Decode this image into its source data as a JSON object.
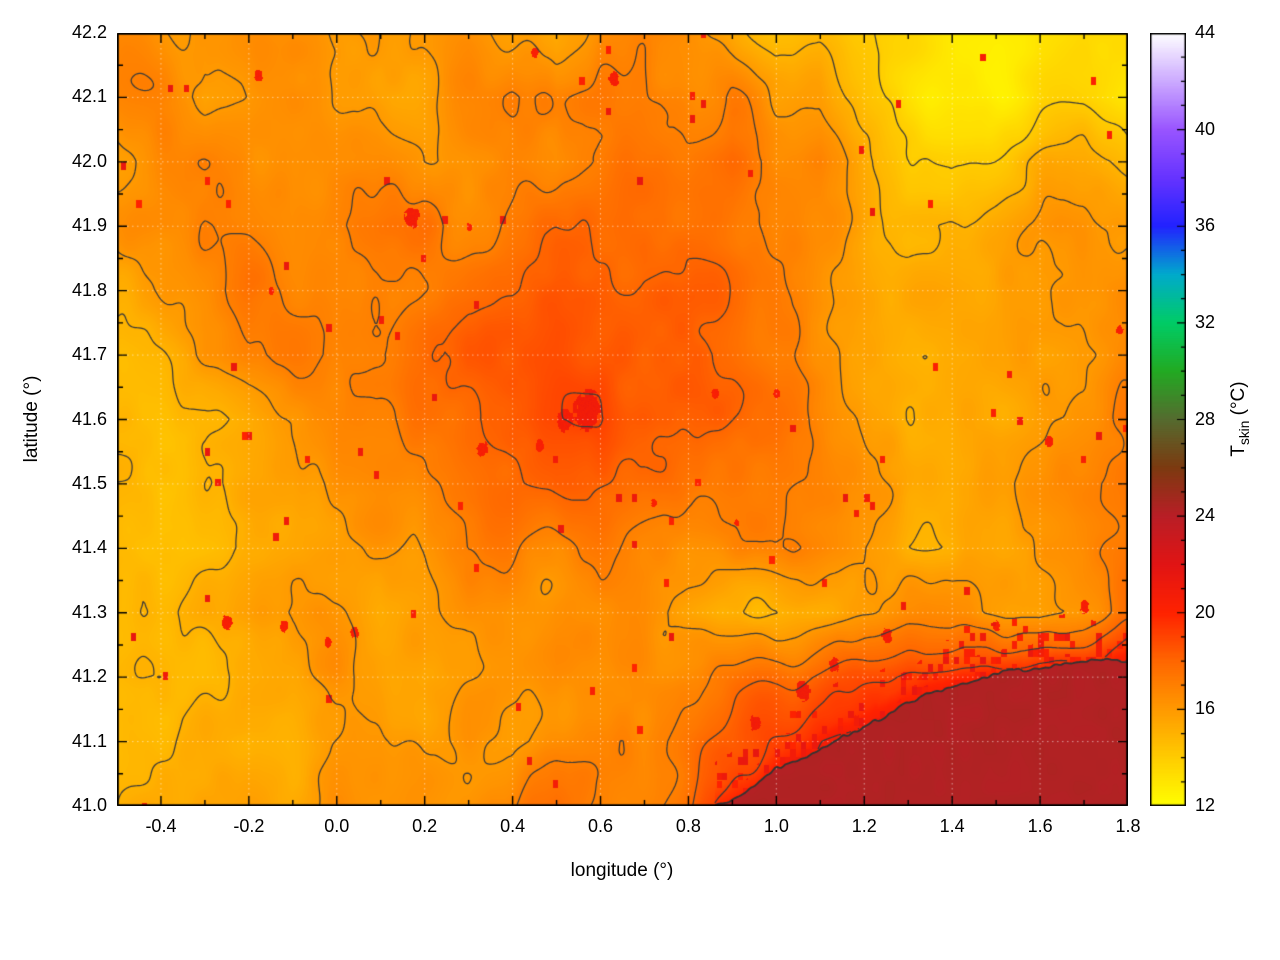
{
  "axes": {
    "x": {
      "label": "longitude (°)",
      "min": -0.5,
      "max": 1.8,
      "tick_labels": [
        "-0.4",
        "-0.2",
        "0.0",
        "0.2",
        "0.4",
        "0.6",
        "0.8",
        "1.0",
        "1.2",
        "1.4",
        "1.6",
        "1.8"
      ],
      "minor_step": 0.1
    },
    "y": {
      "label": "latitude (°)",
      "min": 41.0,
      "max": 42.2,
      "tick_labels": [
        "41.0",
        "41.1",
        "41.2",
        "41.3",
        "41.4",
        "41.5",
        "41.6",
        "41.7",
        "41.8",
        "41.9",
        "42.0",
        "42.1",
        "42.2"
      ],
      "minor_step": 0.05
    },
    "cb": {
      "label_main": "T",
      "label_sub": "skin",
      "label_rest": " (°C)",
      "min": 12,
      "max": 44,
      "tick_labels": [
        "12",
        "16",
        "20",
        "24",
        "28",
        "32",
        "36",
        "40",
        "44"
      ],
      "minor_step": 1
    }
  },
  "chart_data": {
    "type": "heatmap",
    "title": "",
    "variable": "T_skin",
    "units": "°C",
    "x_range": [
      -0.5,
      1.8
    ],
    "y_range": [
      41.0,
      42.2
    ],
    "cb_range": [
      12,
      44
    ],
    "grid": {
      "lon_start": -0.5,
      "lon_step": 0.1,
      "lat_start": 42.2,
      "lat_step": -0.1,
      "ncols": 24,
      "nrows": 13,
      "order": "rows from north (42.2) to south (41.0)",
      "values": [
        [
          16.2,
          16.0,
          15.5,
          15.8,
          16.2,
          16.0,
          15.5,
          15.8,
          16.0,
          15.5,
          15.0,
          16.5,
          16.8,
          16.2,
          15.0,
          14.0,
          14.5,
          13.8,
          13.4,
          13.2,
          13.2,
          13.3,
          13.4,
          13.6
        ],
        [
          16.0,
          16.3,
          15.2,
          15.6,
          16.4,
          16.2,
          15.4,
          16.0,
          16.4,
          16.8,
          16.2,
          17.2,
          17.0,
          16.6,
          16.8,
          15.2,
          15.6,
          14.2,
          13.5,
          13.2,
          13.1,
          13.2,
          13.3,
          13.0
        ],
        [
          15.5,
          16.2,
          16.5,
          16.3,
          16.0,
          16.4,
          16.6,
          16.2,
          16.5,
          16.8,
          16.4,
          17.0,
          17.4,
          17.2,
          17.6,
          16.4,
          16.6,
          15.4,
          14.6,
          14.2,
          14.6,
          15.2,
          15.6,
          15.0
        ],
        [
          15.8,
          16.4,
          16.8,
          16.6,
          16.2,
          16.8,
          17.4,
          17.8,
          17.2,
          17.6,
          17.8,
          17.4,
          17.8,
          17.6,
          17.2,
          16.8,
          16.2,
          15.6,
          15.2,
          15.6,
          15.8,
          16.2,
          16.4,
          16.0
        ],
        [
          15.6,
          16.2,
          16.6,
          17.0,
          16.6,
          16.4,
          17.0,
          17.6,
          18.0,
          17.8,
          18.2,
          18.0,
          18.4,
          18.2,
          17.6,
          17.0,
          16.4,
          16.0,
          15.6,
          15.8,
          15.4,
          16.0,
          16.4,
          16.6
        ],
        [
          15.2,
          15.6,
          16.2,
          16.6,
          16.8,
          16.6,
          17.2,
          17.8,
          18.4,
          18.2,
          18.6,
          18.8,
          18.4,
          18.6,
          18.0,
          17.2,
          16.6,
          16.0,
          15.4,
          15.0,
          15.2,
          15.6,
          16.0,
          16.4
        ],
        [
          15.4,
          15.0,
          14.8,
          15.2,
          15.6,
          16.4,
          17.0,
          17.6,
          18.2,
          18.6,
          18.8,
          19.0,
          18.6,
          18.2,
          17.8,
          17.4,
          16.8,
          16.2,
          15.2,
          14.8,
          15.0,
          15.6,
          16.2,
          17.0
        ],
        [
          14.6,
          14.4,
          14.8,
          15.4,
          15.2,
          15.8,
          16.6,
          17.2,
          17.8,
          18.2,
          18.4,
          18.2,
          17.8,
          17.4,
          17.6,
          17.2,
          16.6,
          16.0,
          15.4,
          15.0,
          15.4,
          16.0,
          16.6,
          17.2
        ],
        [
          14.4,
          14.2,
          14.6,
          15.2,
          15.6,
          15.4,
          16.0,
          16.8,
          17.6,
          17.2,
          16.8,
          17.2,
          16.8,
          16.4,
          16.8,
          17.0,
          16.4,
          15.8,
          15.0,
          14.8,
          15.2,
          15.8,
          16.4,
          17.0
        ],
        [
          14.8,
          15.2,
          15.6,
          16.0,
          16.4,
          16.2,
          15.8,
          16.2,
          16.6,
          16.2,
          16.6,
          16.4,
          16.0,
          15.4,
          14.8,
          14.6,
          15.2,
          16.2,
          16.8,
          16.4,
          16.0,
          15.6,
          16.2,
          17.4
        ],
        [
          15.2,
          15.6,
          15.2,
          15.6,
          16.0,
          16.4,
          16.0,
          15.6,
          16.0,
          16.4,
          16.8,
          16.2,
          15.8,
          16.2,
          16.8,
          17.4,
          18.2,
          19.0,
          19.6,
          20.0,
          20.2,
          20.4,
          20.4,
          20.6
        ],
        [
          14.8,
          15.2,
          15.6,
          15.2,
          15.6,
          16.0,
          16.4,
          16.0,
          16.4,
          16.0,
          16.6,
          17.0,
          16.6,
          17.2,
          18.0,
          19.0,
          20.0,
          20.4,
          20.6,
          20.6,
          20.6,
          20.6,
          20.6,
          20.6
        ],
        [
          14.6,
          15.0,
          15.4,
          15.8,
          15.4,
          15.8,
          16.2,
          16.6,
          16.2,
          16.6,
          17.0,
          16.6,
          17.2,
          18.0,
          19.5,
          20.5,
          20.6,
          20.6,
          20.6,
          20.6,
          20.6,
          20.6,
          20.6,
          20.6
        ]
      ]
    },
    "sea": {
      "temp": 24.25,
      "coastline": [
        [
          0.86,
          41.0
        ],
        [
          0.92,
          41.02
        ],
        [
          1.0,
          41.055
        ],
        [
          1.1,
          41.09
        ],
        [
          1.2,
          41.125
        ],
        [
          1.3,
          41.16
        ],
        [
          1.4,
          41.185
        ],
        [
          1.55,
          41.21
        ],
        [
          1.7,
          41.225
        ],
        [
          1.8,
          41.23
        ]
      ]
    },
    "hot_spots": [
      [
        0.57,
        41.615,
        0.03,
        20.8
      ],
      [
        0.52,
        41.6,
        0.018,
        20.6
      ],
      [
        0.17,
        41.915,
        0.016,
        20.6
      ],
      [
        0.33,
        41.555,
        0.012,
        20.4
      ],
      [
        0.46,
        41.56,
        0.01,
        20.3
      ],
      [
        0.63,
        42.13,
        0.012,
        20.5
      ],
      [
        0.45,
        42.17,
        0.008,
        20.3
      ],
      [
        -0.18,
        42.135,
        0.01,
        20.4
      ],
      [
        0.86,
        41.64,
        0.008,
        20.3
      ],
      [
        1.0,
        41.64,
        0.008,
        20.3
      ],
      [
        0.72,
        41.47,
        0.007,
        20.2
      ],
      [
        -0.25,
        41.285,
        0.012,
        20.4
      ],
      [
        -0.12,
        41.28,
        0.009,
        20.3
      ],
      [
        0.04,
        41.27,
        0.009,
        20.3
      ],
      [
        -0.02,
        41.255,
        0.008,
        20.2
      ],
      [
        1.25,
        41.265,
        0.012,
        20.5
      ],
      [
        1.62,
        41.565,
        0.01,
        20.4
      ],
      [
        1.7,
        41.31,
        0.01,
        20.4
      ],
      [
        1.06,
        41.18,
        0.016,
        20.8
      ],
      [
        1.13,
        41.22,
        0.012,
        20.6
      ],
      [
        0.95,
        41.13,
        0.012,
        20.7
      ],
      [
        1.5,
        41.28,
        0.008,
        20.3
      ],
      [
        -0.15,
        41.8,
        0.006,
        20.2
      ],
      [
        0.3,
        41.9,
        0.006,
        20.2
      ],
      [
        1.78,
        41.74,
        0.008,
        20.4
      ],
      [
        0.91,
        41.44,
        0.006,
        20.2
      ]
    ],
    "contour_levels": [
      14,
      15,
      16,
      17,
      18,
      19,
      20
    ],
    "palette": [
      [
        12,
        "#ffff00"
      ],
      [
        14,
        "#ffcc00"
      ],
      [
        16,
        "#ff9900"
      ],
      [
        18,
        "#ff6600"
      ],
      [
        20,
        "#ff2200"
      ],
      [
        22,
        "#e11414"
      ],
      [
        24,
        "#b91e26"
      ],
      [
        26,
        "#7c3a10"
      ],
      [
        28,
        "#556b2f"
      ],
      [
        30,
        "#22aa22"
      ],
      [
        32,
        "#00cc66"
      ],
      [
        34,
        "#00aacc"
      ],
      [
        36,
        "#2222ff"
      ],
      [
        38,
        "#6633ff"
      ],
      [
        40,
        "#9955ff"
      ],
      [
        42,
        "#ccaaff"
      ],
      [
        44,
        "#ffffff"
      ]
    ],
    "style": {
      "background": "#ffffff",
      "contour_color": "#3a3a3a",
      "frame_color": "#000000",
      "grid_dots": "rgba(255,255,255,0.55)"
    },
    "texture": {
      "noise_octaves": [
        [
          4.2,
          0.55
        ],
        [
          10.5,
          0.38
        ],
        [
          23.0,
          0.2
        ]
      ],
      "speckle_temp": 20.5,
      "coast_speckle_band_deg": 0.09
    }
  }
}
